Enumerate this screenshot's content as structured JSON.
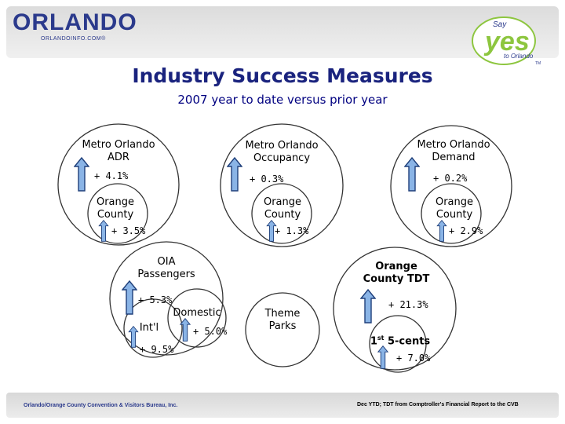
{
  "header": {
    "logo_text": "ORLANDO",
    "logo_url_text": "ORLANDOINFO.COM®",
    "badge_say": "Say",
    "badge_yes": "yes",
    "badge_to": "to Orlando",
    "badge_tm": "TM"
  },
  "title": "Industry Success Measures",
  "subtitle": "2007 year to date versus prior year",
  "measures": {
    "adr": {
      "label_line1": "Metro Orlando",
      "label_line2": "ADR",
      "value": "+ 4.1%",
      "county_line1": "Orange",
      "county_line2": "County",
      "county_value": "+ 3.5%"
    },
    "occupancy": {
      "label_line1": "Metro Orlando",
      "label_line2": "Occupancy",
      "value": "+ 0.3%",
      "county_line1": "Orange",
      "county_line2": "County",
      "county_value": "+ 1.3%"
    },
    "demand": {
      "label_line1": "Metro Orlando",
      "label_line2": "Demand",
      "value": "+ 0.2%",
      "county_line1": "Orange",
      "county_line2": "County",
      "county_value": "+ 2.9%"
    },
    "oia": {
      "label_line1": "OIA",
      "label_line2": "Passengers",
      "value": "+ 5.3%",
      "domestic_label": "Domestic",
      "domestic_value": "+ 5.0%",
      "intl_label": "Int'l",
      "intl_value": "+ 9.5%"
    },
    "theme_parks": {
      "label_line1": "Theme",
      "label_line2": "Parks"
    },
    "tdt": {
      "label_line1": "Orange",
      "label_line2": "County TDT",
      "value": "+ 21.3%",
      "cents_label_prefix": "1",
      "cents_label_sup": "st",
      "cents_label_suffix": " 5-cents",
      "cents_value": "+ 7.0%"
    }
  },
  "footer": {
    "left": "Orlando/Orange County Convention & Visitors Bureau, Inc.",
    "right": "Dec YTD; TDT from Comptroller's Financial Report to the CVB"
  },
  "colors": {
    "arrow_fill": "#8ab4e6",
    "arrow_stroke": "#1f3f7a",
    "title": "#1a237e",
    "circle": "#333333",
    "yes_green": "#8dc63f",
    "brand_blue": "#2b3a8c"
  }
}
